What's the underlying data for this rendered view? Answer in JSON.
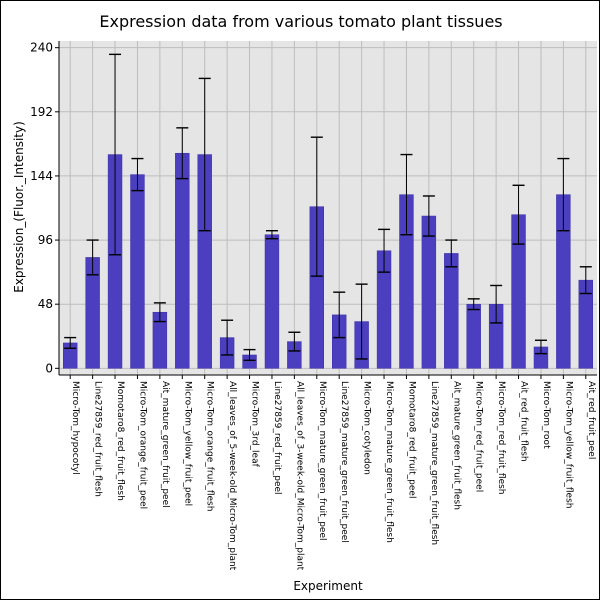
{
  "chart_data": {
    "type": "bar",
    "title": "Expression data from various tomato plant tissues",
    "xlabel": "Experiment",
    "ylabel": "Expression_(Fluor._Intensity)",
    "ylim": [
      -5,
      245
    ],
    "yticks": [
      0,
      48,
      96,
      144,
      192,
      240
    ],
    "grid": true,
    "error_bars": true,
    "colors": {
      "bar": "#4b3fbf",
      "bar_edge": "#3a2fa6",
      "plot_bg": "#e5e5e5",
      "grid": "#bdbdbd"
    },
    "categories": [
      "Micro-Tom_hypocotyl",
      "Line27859_red_fruit_flesh",
      "Momotaro8_red_fruit_flesh",
      "Micro-Tom_orange_fruit_peel",
      "Ait_mature_green_fruit_peel",
      "Micro-Tom_yellow_fruit_peel",
      "Micro-Tom_orange_fruit_flesh",
      "All_leaves_of_5-week-old_Micro-Tom_plant",
      "Micro-Tom_3rd_leaf",
      "Line27859_red_fruit_peel",
      "All_leaves_of_3-week-old_Micro-Tom_plant",
      "Micro-Tom_mature_green_fruit_peel",
      "Line27859_mature_green_fruit_peel",
      "Micro-Tom_cotyledon",
      "Micro-Tom_mature_green_fruit_flesh",
      "Momotaro8_red_fruit_peel",
      "Line27859_mature_green_fruit_flesh",
      "Ait_mature_green_fruit_flesh",
      "Micro-Tom_red_fruit_peel",
      "Micro-Tom_red_fruit_flesh",
      "Ait_red_fruit_flesh",
      "Micro-Tom_root",
      "Micro-Tom_yellow_fruit_flesh",
      "Ait_red_fruit_peel"
    ],
    "values": [
      19,
      83,
      160,
      145,
      42,
      161,
      160,
      23,
      10,
      100,
      20,
      121,
      40,
      35,
      88,
      130,
      114,
      86,
      48,
      48,
      115,
      16,
      130,
      66
    ],
    "errors": [
      4,
      13,
      75,
      12,
      7,
      19,
      57,
      13,
      4,
      3,
      7,
      52,
      17,
      28,
      16,
      30,
      15,
      10,
      4,
      14,
      22,
      5,
      27,
      10
    ]
  }
}
